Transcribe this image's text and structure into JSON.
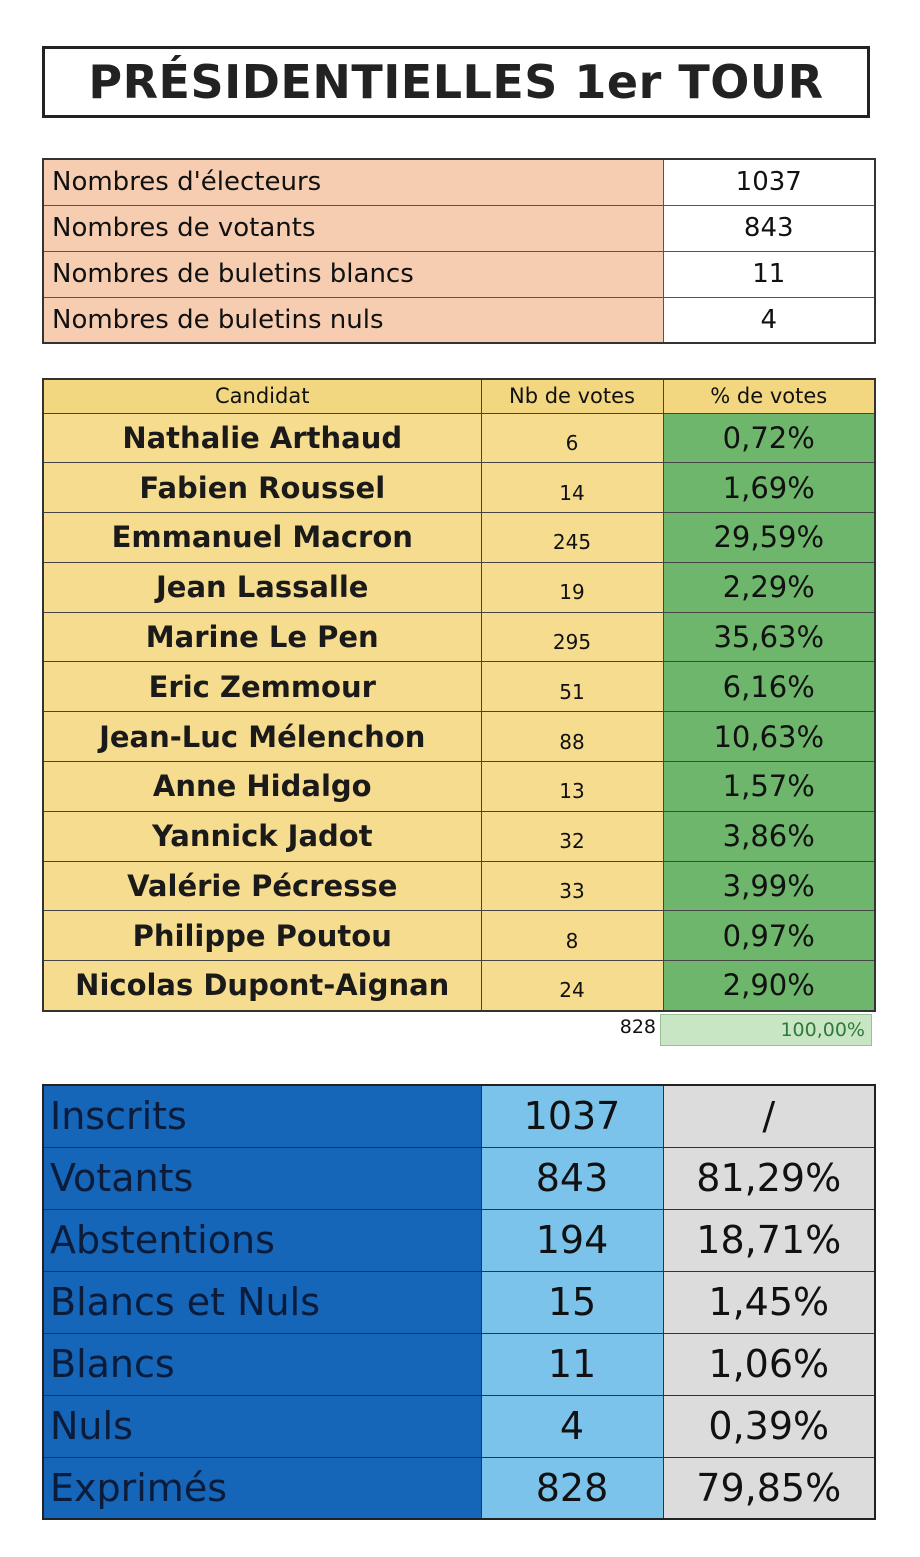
{
  "title": "PRÉSIDENTIELLES 1er TOUR",
  "electors": [
    {
      "label": "Nombres d'électeurs",
      "value": "1037"
    },
    {
      "label": "Nombres de votants",
      "value": "843"
    },
    {
      "label": "Nombres de buletins blancs",
      "value": "11"
    },
    {
      "label": "Nombres de buletins nuls",
      "value": "4"
    }
  ],
  "candidates_header": {
    "name": "Candidat",
    "votes": "Nb de votes",
    "percent": "% de votes"
  },
  "candidates": [
    {
      "name": "Nathalie Arthaud",
      "votes": "6",
      "percent": "0,72%"
    },
    {
      "name": "Fabien Roussel",
      "votes": "14",
      "percent": "1,69%"
    },
    {
      "name": "Emmanuel Macron",
      "votes": "245",
      "percent": "29,59%"
    },
    {
      "name": "Jean Lassalle",
      "votes": "19",
      "percent": "2,29%"
    },
    {
      "name": "Marine Le Pen",
      "votes": "295",
      "percent": "35,63%"
    },
    {
      "name": "Eric Zemmour",
      "votes": "51",
      "percent": "6,16%"
    },
    {
      "name": "Jean-Luc Mélenchon",
      "votes": "88",
      "percent": "10,63%"
    },
    {
      "name": "Anne Hidalgo",
      "votes": "13",
      "percent": "1,57%"
    },
    {
      "name": "Yannick Jadot",
      "votes": "32",
      "percent": "3,86%"
    },
    {
      "name": "Valérie Pécresse",
      "votes": "33",
      "percent": "3,99%"
    },
    {
      "name": "Philippe Poutou",
      "votes": "8",
      "percent": "0,97%"
    },
    {
      "name": "Nicolas Dupont-Aignan",
      "votes": "24",
      "percent": "2,90%"
    }
  ],
  "totals": {
    "votes": "828",
    "percent": "100,00%"
  },
  "stats": [
    {
      "label": "Inscrits",
      "value": "1037",
      "percent": "/"
    },
    {
      "label": "Votants",
      "value": "843",
      "percent": "81,29%"
    },
    {
      "label": "Abstentions",
      "value": "194",
      "percent": "18,71%"
    },
    {
      "label": "Blancs et Nuls",
      "value": "15",
      "percent": "1,45%"
    },
    {
      "label": "Blancs",
      "value": "11",
      "percent": "1,06%"
    },
    {
      "label": "Nuls",
      "value": "4",
      "percent": "0,39%"
    },
    {
      "label": "Exprimés",
      "value": "828",
      "percent": "79,85%"
    }
  ]
}
